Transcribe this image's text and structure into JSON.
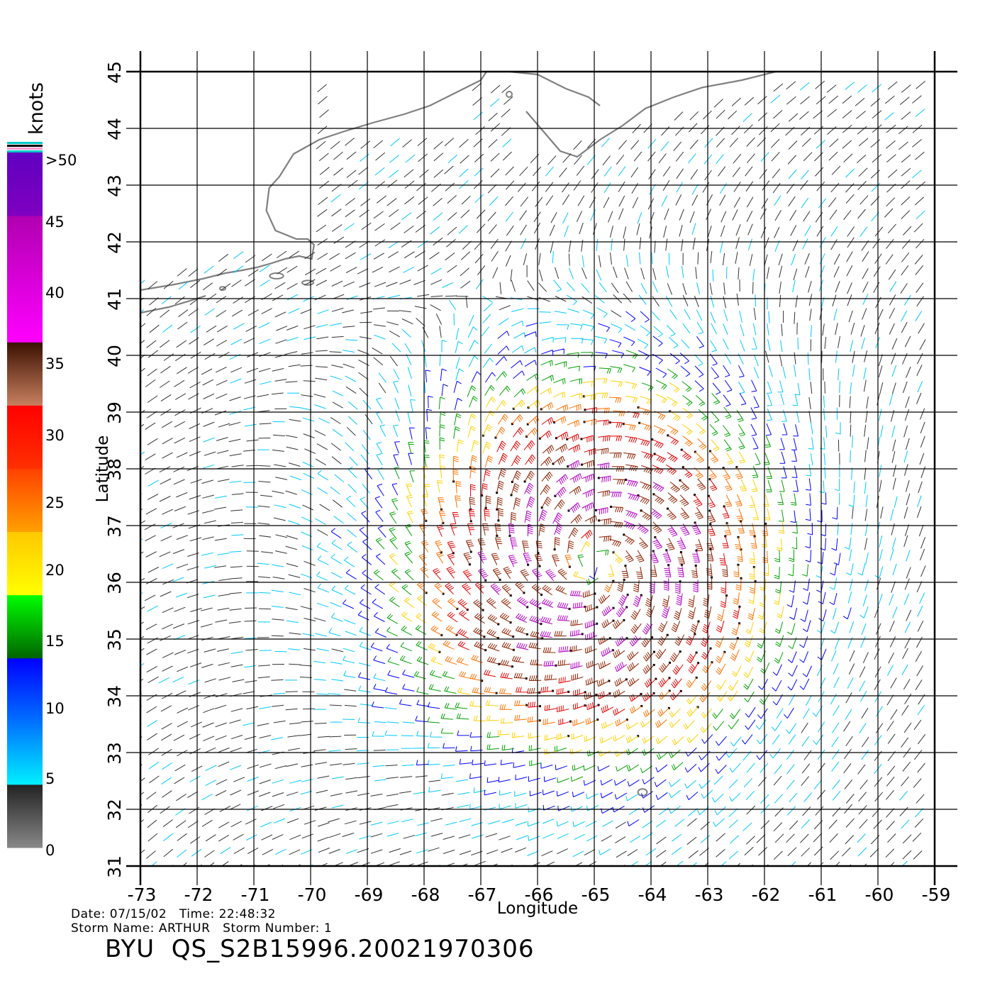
{
  "map": {
    "xlabel": "Longitude",
    "ylabel": "Latitude",
    "lon_range": [
      -73,
      -59
    ],
    "lat_range": [
      31,
      45
    ],
    "lon_ticks": [
      "-73",
      "-72",
      "-71",
      "-70",
      "-69",
      "-68",
      "-67",
      "-66",
      "-65",
      "-64",
      "-63",
      "-62",
      "-61",
      "-60",
      "-59"
    ],
    "lat_ticks": [
      "31",
      "32",
      "33",
      "34",
      "35",
      "36",
      "37",
      "38",
      "39",
      "40",
      "41",
      "42",
      "43",
      "44",
      "45"
    ],
    "grid": true,
    "storm_center": {
      "lon": -65.0,
      "lat": 36.3
    },
    "coast_color": "#808080"
  },
  "colorbar": {
    "unit_label": "knots",
    "labels": [
      ">50",
      "45",
      "40",
      "35",
      "30",
      "25",
      "20",
      "15",
      "10",
      "5",
      "0"
    ],
    "bands": [
      {
        "from": 0,
        "to": 5,
        "colors": [
          "#888888",
          "#222222"
        ]
      },
      {
        "from": 5,
        "to": 10,
        "colors": [
          "#00f0ff",
          "#0070ff"
        ]
      },
      {
        "from": 10,
        "to": 15,
        "colors": [
          "#0070ff",
          "#0000ff"
        ]
      },
      {
        "from": 15,
        "to": 20,
        "colors": [
          "#006400",
          "#00ff00"
        ]
      },
      {
        "from": 20,
        "to": 25,
        "colors": [
          "#ffff00",
          "#ffc800"
        ]
      },
      {
        "from": 25,
        "to": 30,
        "colors": [
          "#ffa000",
          "#ff4000"
        ]
      },
      {
        "from": 30,
        "to": 35,
        "colors": [
          "#ff3000",
          "#ff0000"
        ]
      },
      {
        "from": 35,
        "to": 40,
        "colors": [
          "#c88060",
          "#3a1000"
        ]
      },
      {
        "from": 40,
        "to": 50,
        "colors": [
          "#ff00ff",
          "#b000b0"
        ]
      },
      {
        "from": 50,
        "to": 55,
        "colors": [
          "#8000c0",
          "#6000c0"
        ]
      }
    ]
  },
  "speed_colors": {
    "calm": "#333333",
    "light": "#00c8ff",
    "moderate": "#0000ff",
    "fresh": "#00a000",
    "strong": "#ffd000",
    "gale": "#ff7000",
    "storm": "#e00000",
    "severe": "#8a2000",
    "extreme": "#b000c0"
  },
  "footer": {
    "date_label": "Date:",
    "date": "07/15/02",
    "time_label": "Time:",
    "time": "22:48:32",
    "storm_name_label": "Storm Name:",
    "storm_name": "ARTHUR",
    "storm_number_label": "Storm Number:",
    "storm_number": "1",
    "product": "BYU  QS_S2B15996.20021970306"
  }
}
